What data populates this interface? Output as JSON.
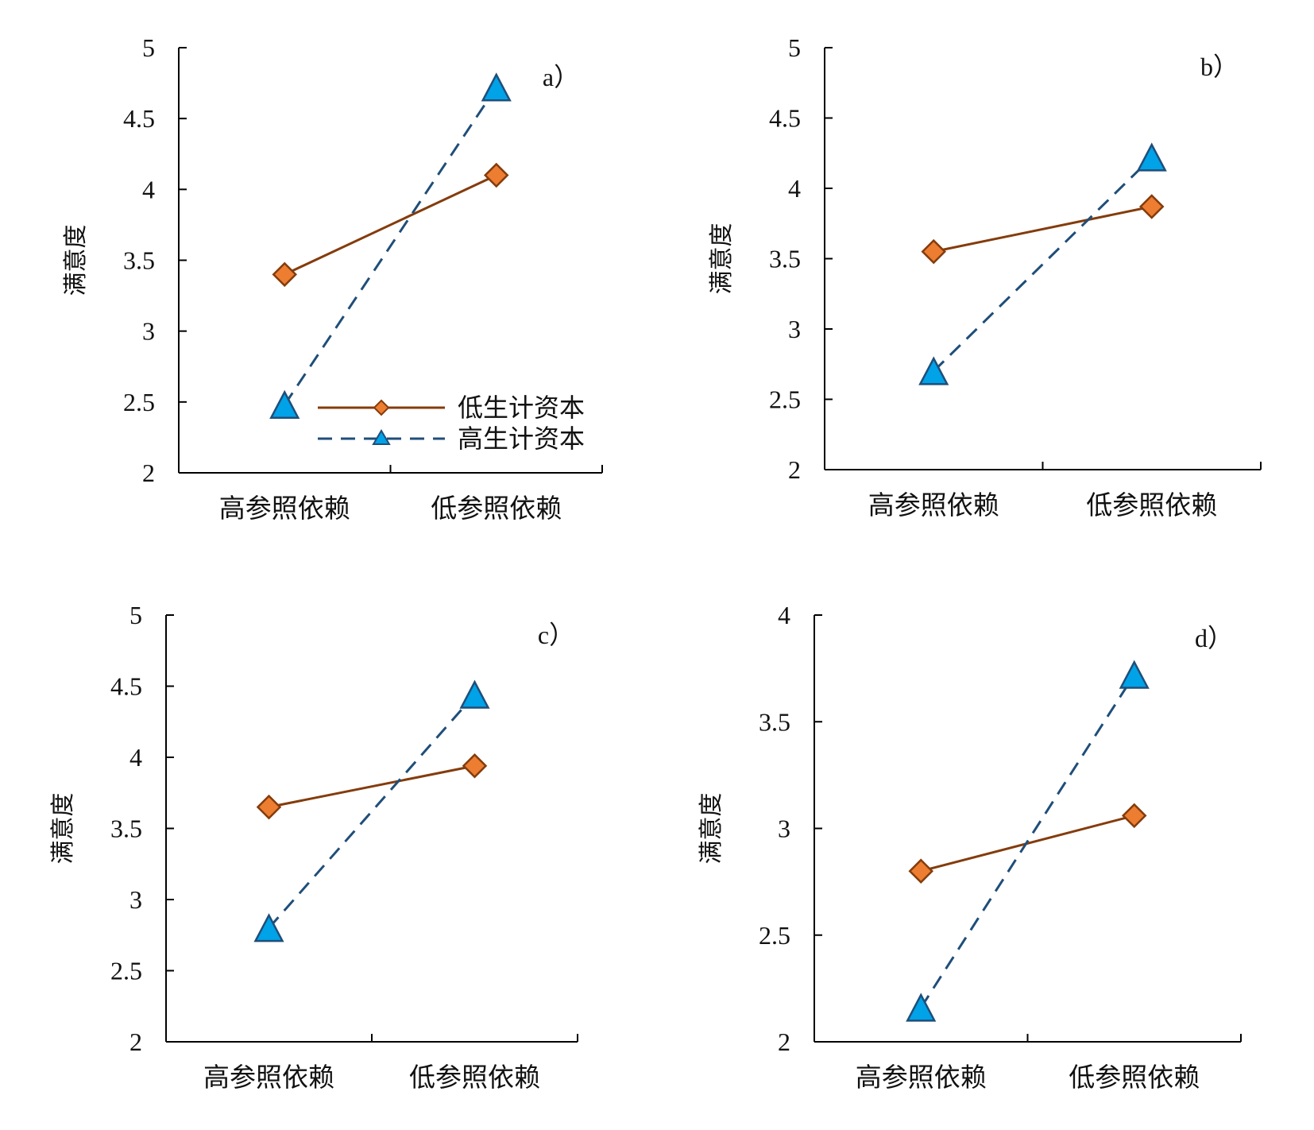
{
  "colors": {
    "low_line": "#843C0C",
    "low_fill": "#ED7D31",
    "high_line": "#1F4E79",
    "high_fill": "#00A2E8",
    "high_stroke": "#1F4E79",
    "axis": "#000000"
  },
  "legend": {
    "items": [
      "低生计资本",
      "高生计资本"
    ],
    "placement": "bottom-right of panel a"
  },
  "chart_data": [
    {
      "type": "line",
      "panel_label": "a）",
      "categories": [
        "高参照依赖",
        "低参照依赖"
      ],
      "ylabel": "满意度",
      "ylim": [
        2,
        5
      ],
      "yticks": [
        "2",
        "2.5",
        "3",
        "3.5",
        "4",
        "4.5",
        "5"
      ],
      "series": [
        {
          "name": "低生计资本",
          "values": [
            3.4,
            4.1
          ]
        },
        {
          "name": "高生计资本",
          "values": [
            2.48,
            4.72
          ]
        }
      ]
    },
    {
      "type": "line",
      "panel_label": "b）",
      "categories": [
        "高参照依赖",
        "低参照依赖"
      ],
      "ylabel": "满意度",
      "ylim": [
        2,
        5
      ],
      "yticks": [
        "2",
        "2.5",
        "3",
        "3.5",
        "4",
        "4.5",
        "5"
      ],
      "series": [
        {
          "name": "低生计资本",
          "values": [
            3.55,
            3.87
          ]
        },
        {
          "name": "高生计资本",
          "values": [
            2.7,
            4.22
          ]
        }
      ]
    },
    {
      "type": "line",
      "panel_label": "c）",
      "categories": [
        "高参照依赖",
        "低参照依赖"
      ],
      "ylabel": "满意度",
      "ylim": [
        2,
        5
      ],
      "yticks": [
        "2",
        "2.5",
        "3",
        "3.5",
        "4",
        "4.5",
        "5"
      ],
      "series": [
        {
          "name": "低生计资本",
          "values": [
            3.65,
            3.94
          ]
        },
        {
          "name": "高生计资本",
          "values": [
            2.8,
            4.44
          ]
        }
      ]
    },
    {
      "type": "line",
      "panel_label": "d）",
      "categories": [
        "高参照依赖",
        "低参照依赖"
      ],
      "ylabel": "满意度",
      "ylim": [
        2,
        4
      ],
      "yticks": [
        "2",
        "2.5",
        "3",
        "3.5",
        "4"
      ],
      "series": [
        {
          "name": "低生计资本",
          "values": [
            2.8,
            3.06
          ]
        },
        {
          "name": "高生计资本",
          "values": [
            2.16,
            3.72
          ]
        }
      ]
    }
  ]
}
